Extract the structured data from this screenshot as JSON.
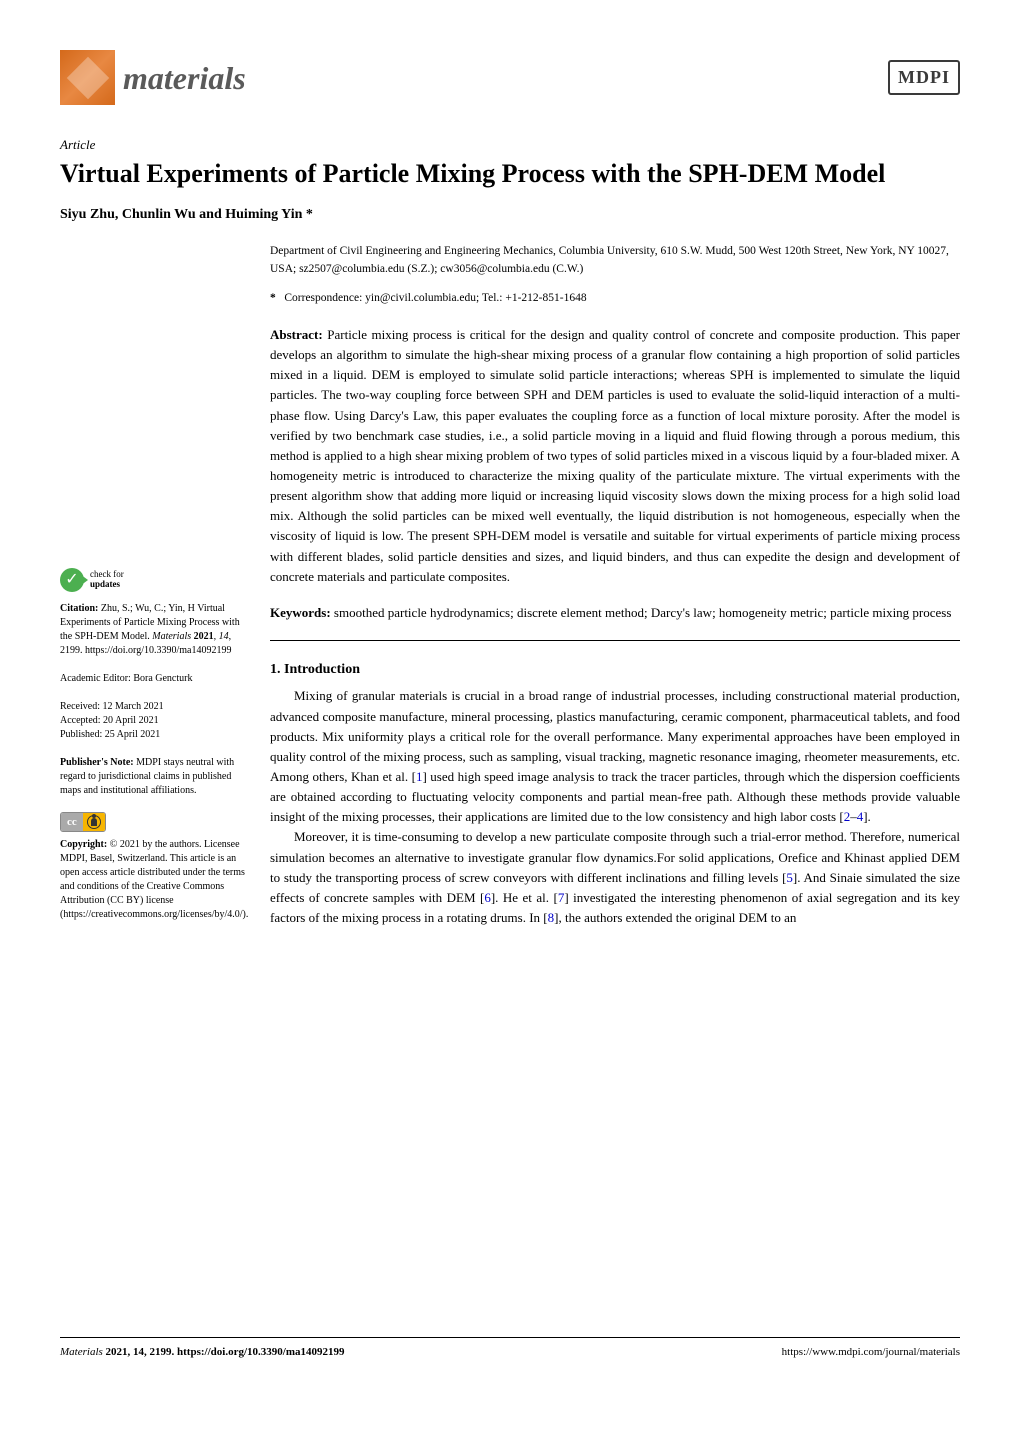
{
  "header": {
    "journal_name": "materials",
    "publisher": "MDPI"
  },
  "article": {
    "type": "Article",
    "title": "Virtual Experiments of Particle Mixing Process with the SPH-DEM Model",
    "authors": "Siyu Zhu, Chunlin Wu and Huiming Yin *",
    "affiliation": "Department of Civil Engineering and Engineering Mechanics, Columbia University, 610 S.W. Mudd, 500 West 120th Street, New York, NY 10027, USA; sz2507@columbia.edu (S.Z.); cw3056@columbia.edu (C.W.)",
    "correspondence_label": "*",
    "correspondence": "Correspondence: yin@civil.columbia.edu; Tel.: +1-212-851-1648",
    "abstract_label": "Abstract:",
    "abstract": "Particle mixing process is critical for the design and quality control of concrete and composite production. This paper develops an algorithm to simulate the high-shear mixing process of a granular flow containing a high proportion of solid particles mixed in a liquid. DEM is employed to simulate solid particle interactions; whereas SPH is implemented to simulate the liquid particles. The two-way coupling force between SPH and DEM particles is used to evaluate the solid-liquid interaction of a multi-phase flow. Using Darcy's Law, this paper evaluates the coupling force as a function of local mixture porosity. After the model is verified by two benchmark case studies, i.e., a solid particle moving in a liquid and fluid flowing through a porous medium, this method is applied to a high shear mixing problem of two types of solid particles mixed in a viscous liquid by a four-bladed mixer. A homogeneity metric is introduced to characterize the mixing quality of the particulate mixture. The virtual experiments with the present algorithm show that adding more liquid or increasing liquid viscosity slows down the mixing process for a high solid load mix. Although the solid particles can be mixed well eventually, the liquid distribution is not homogeneous, especially when the viscosity of liquid is low. The present SPH-DEM model is versatile and suitable for virtual experiments of particle mixing process with different blades, solid particle densities and sizes, and liquid binders, and thus can expedite the design and development of concrete materials and particulate composites.",
    "keywords_label": "Keywords:",
    "keywords": "smoothed particle hydrodynamics; discrete element method; Darcy's law; homogeneity metric; particle mixing process"
  },
  "section1": {
    "heading": "1. Introduction",
    "para1_a": "Mixing of granular materials is crucial in a broad range of industrial processes, including constructional material production, advanced composite manufacture, mineral processing, plastics manufacturing, ceramic component, pharmaceutical tablets, and food products. Mix uniformity plays a critical role for the overall performance. Many experimental approaches have been employed in quality control of the mixing process, such as sampling, visual tracking, magnetic resonance imaging, rheometer measurements, etc. Among others, Khan et al. [",
    "ref1": "1",
    "para1_b": "] used high speed image analysis to track the tracer particles, through which the dispersion coefficients are obtained according to fluctuating velocity components and partial mean-free path. Although these methods provide valuable insight of the mixing processes, their applications are limited due to the low consistency and high labor costs [",
    "ref2": "2",
    "para1_c": "–",
    "ref4": "4",
    "para1_d": "].",
    "para2_a": "Moreover, it is time-consuming to develop a new particulate composite through such a trial-error method. Therefore, numerical simulation becomes an alternative to investigate granular flow dynamics.For solid applications, Orefice and Khinast applied DEM to study the transporting process of screw conveyors with different inclinations and filling levels [",
    "ref5": "5",
    "para2_b": "]. And Sinaie simulated the size effects of concrete samples with DEM [",
    "ref6": "6",
    "para2_c": "]. He et al. [",
    "ref7": "7",
    "para2_d": "] investigated the interesting phenomenon of axial segregation and its key factors of the mixing process in a rotating drums. In [",
    "ref8": "8",
    "para2_e": "], the authors extended the original DEM to an"
  },
  "sidebar": {
    "check_for": "check for",
    "updates": "updates",
    "citation_label": "Citation:",
    "citation": "Zhu, S.; Wu, C.; Yin, H Virtual Experiments of Particle Mixing Process with the SPH-DEM Model. ",
    "citation_journal": "Materials",
    "citation_year": " 2021",
    "citation_vol": ", 14",
    "citation_page": ", 2199. https://doi.org/10.3390/ma14092199",
    "editor_label": "Academic Editor: ",
    "editor": "Bora Gencturk",
    "received": "Received: 12 March 2021",
    "accepted": "Accepted: 20 April 2021",
    "published": "Published: 25 April 2021",
    "pubnote_label": "Publisher's Note:",
    "pubnote": " MDPI stays neutral with regard to jurisdictional claims in published maps and institutional affiliations.",
    "copyright_label": "Copyright:",
    "copyright": " © 2021 by the authors. Licensee MDPI, Basel, Switzerland. This article is an open access article distributed under the terms and conditions of the Creative Commons Attribution (CC BY) license (https://creativecommons.org/licenses/by/4.0/)."
  },
  "footer": {
    "left_journal": "Materials",
    "left_rest": " 2021, 14, 2199. https://doi.org/10.3390/ma14092199",
    "right": "https://www.mdpi.com/journal/materials"
  }
}
